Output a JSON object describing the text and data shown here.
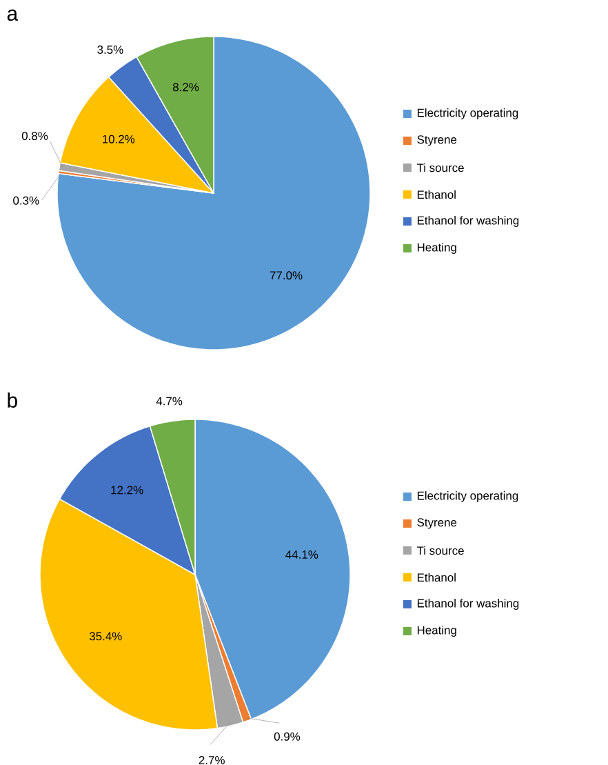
{
  "chart_data": [
    {
      "type": "pie",
      "title": "a",
      "categories": [
        "Electricity operating",
        "Styrene",
        "Ti source",
        "Ethanol",
        "Ethanol for washing",
        "Heating"
      ],
      "values": [
        77.0,
        0.3,
        0.8,
        10.2,
        3.5,
        8.2
      ],
      "colors": [
        "#5b9bd5",
        "#ed7d31",
        "#a5a5a5",
        "#ffc000",
        "#4472c4",
        "#70ad47"
      ],
      "value_labels": [
        "77.0%",
        "0.3%",
        "0.8%",
        "10.2%",
        "3.5%",
        "8.2%"
      ],
      "legend": "right"
    },
    {
      "type": "pie",
      "title": "b",
      "categories": [
        "Electricity operating",
        "Styrene",
        "Ti source",
        "Ethanol",
        "Ethanol for washing",
        "Heating"
      ],
      "values": [
        44.1,
        0.9,
        2.7,
        35.4,
        12.2,
        4.7
      ],
      "colors": [
        "#5b9bd5",
        "#ed7d31",
        "#a5a5a5",
        "#ffc000",
        "#4472c4",
        "#70ad47"
      ],
      "value_labels": [
        "44.1%",
        "0.9%",
        "2.7%",
        "35.4%",
        "12.2%",
        "4.7%"
      ],
      "legend": "right"
    }
  ]
}
